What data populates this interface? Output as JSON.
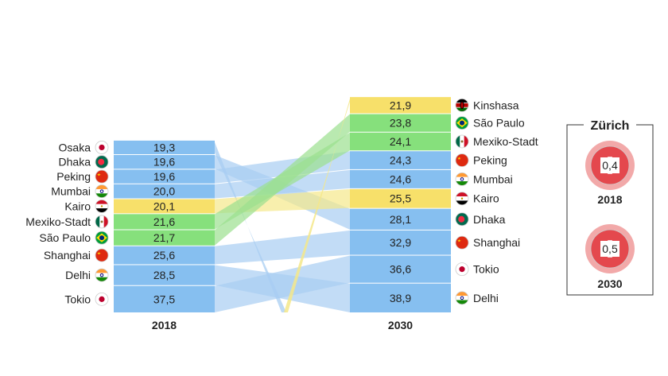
{
  "chart_data": {
    "type": "table",
    "columns": [
      "2018",
      "2030"
    ],
    "series": [
      {
        "name": "2018",
        "rows": [
          {
            "city": "Osaka",
            "value": "19,3",
            "highlight": "blue",
            "flag": "japan"
          },
          {
            "city": "Dhaka",
            "value": "19,6",
            "highlight": "blue",
            "flag": "bangladesh"
          },
          {
            "city": "Peking",
            "value": "19,6",
            "highlight": "blue",
            "flag": "china"
          },
          {
            "city": "Mumbai",
            "value": "20,0",
            "highlight": "blue",
            "flag": "india"
          },
          {
            "city": "Kairo",
            "value": "20,1",
            "highlight": "yellow",
            "flag": "egypt"
          },
          {
            "city": "Mexiko-Stadt",
            "value": "21,6",
            "highlight": "green",
            "flag": "mexico"
          },
          {
            "city": "São Paulo",
            "value": "21,7",
            "highlight": "green",
            "flag": "brazil"
          },
          {
            "city": "Shanghai",
            "value": "25,6",
            "highlight": "blue",
            "flag": "china"
          },
          {
            "city": "Delhi",
            "value": "28,5",
            "highlight": "blue",
            "flag": "india"
          },
          {
            "city": "Tokio",
            "value": "37,5",
            "highlight": "blue",
            "flag": "japan"
          }
        ]
      },
      {
        "name": "2030",
        "rows": [
          {
            "city": "Kinshasa",
            "value": "21,9",
            "highlight": "yellow",
            "flag": "kenya"
          },
          {
            "city": "São Paulo",
            "value": "23,8",
            "highlight": "green",
            "flag": "brazil"
          },
          {
            "city": "Mexiko-Stadt",
            "value": "24,1",
            "highlight": "green",
            "flag": "mexico"
          },
          {
            "city": "Peking",
            "value": "24,3",
            "highlight": "blue",
            "flag": "china"
          },
          {
            "city": "Mumbai",
            "value": "24,6",
            "highlight": "blue",
            "flag": "india"
          },
          {
            "city": "Kairo",
            "value": "25,5",
            "highlight": "yellow",
            "flag": "egypt"
          },
          {
            "city": "Dhaka",
            "value": "28,1",
            "highlight": "blue",
            "flag": "bangladesh"
          },
          {
            "city": "Shanghai",
            "value": "32,9",
            "highlight": "blue",
            "flag": "china"
          },
          {
            "city": "Tokio",
            "value": "36,6",
            "highlight": "blue",
            "flag": "japan"
          },
          {
            "city": "Delhi",
            "value": "38,9",
            "highlight": "blue",
            "flag": "india"
          }
        ]
      }
    ],
    "links": [
      {
        "from": 0,
        "to": null,
        "color": "blue"
      },
      {
        "from": 1,
        "to": 6,
        "color": "blue"
      },
      {
        "from": 2,
        "to": 3,
        "color": "blue"
      },
      {
        "from": 3,
        "to": 4,
        "color": "blue"
      },
      {
        "from": 4,
        "to": 5,
        "color": "yellow"
      },
      {
        "from": 5,
        "to": 2,
        "color": "green"
      },
      {
        "from": 6,
        "to": 1,
        "color": "green"
      },
      {
        "from": 7,
        "to": 7,
        "color": "blue"
      },
      {
        "from": 8,
        "to": 9,
        "color": "blue"
      },
      {
        "from": 9,
        "to": 8,
        "color": "blue"
      }
    ],
    "inset": {
      "title": "Zürich",
      "items": [
        {
          "year": "2018",
          "value": "0,4",
          "flag": "switzerland"
        },
        {
          "year": "2030",
          "value": "0,5",
          "flag": "switzerland"
        }
      ]
    },
    "colors": {
      "blue": "#86bff0",
      "yellow": "#f7e06a",
      "green": "#86e07c",
      "link_blue": "#a8cdf2",
      "link_yellow": "#f5e88a",
      "link_green": "#9be08f"
    }
  }
}
